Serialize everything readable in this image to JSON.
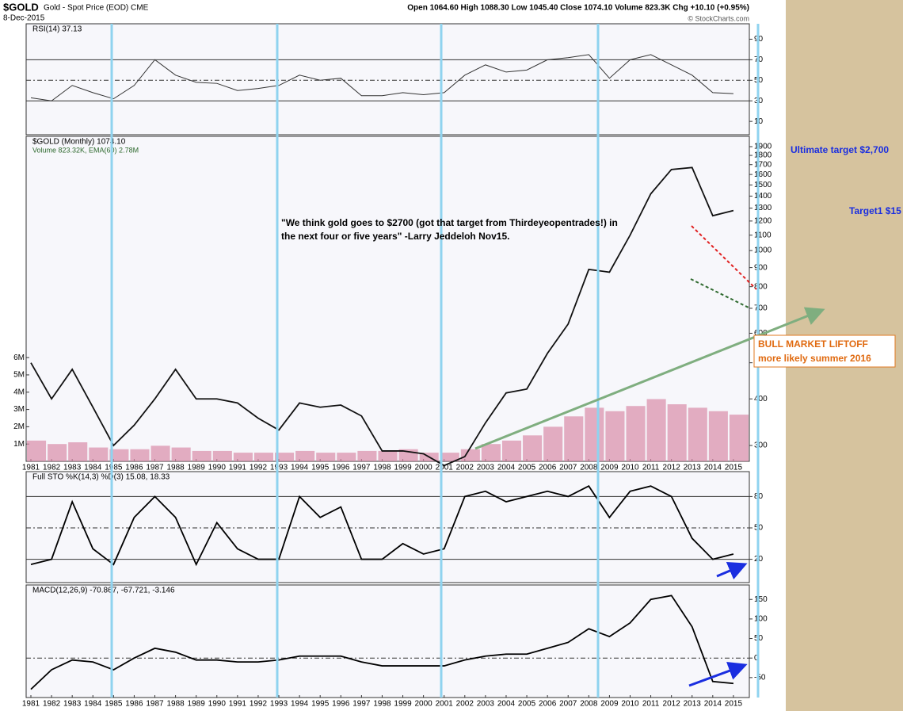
{
  "header": {
    "symbol": "$GOLD",
    "description": "Gold - Spot Price (EOD) CME",
    "date": "8-Dec-2015",
    "quote": "Open 1064.60 High 1088.30 Low 1045.40 Close 1074.10 Volume 823.3K Chg +10.10 (+0.95%)",
    "credit": "© StockCharts.com"
  },
  "annotations": {
    "quote": [
      "\"We think gold goes to $2700 (got that target from Thirdeyeopentrades!) in",
      "the next four or five years\" -Larry Jeddeloh Nov15."
    ],
    "ultimate": "Ultimate target $2,700",
    "target1": "Target1 $15",
    "box": [
      "BULL MARKET LIFTOFF",
      "more likely summer 2016"
    ]
  },
  "chart_data": [
    {
      "type": "line",
      "label": "RSI(14) 37.13",
      "color": "#333333",
      "x": [
        1981,
        1982,
        1983,
        1984,
        1985,
        1986,
        1987,
        1988,
        1989,
        1990,
        1991,
        1992,
        1993,
        1994,
        1995,
        1996,
        1997,
        1998,
        1999,
        2000,
        2001,
        2002,
        2003,
        2004,
        2005,
        2006,
        2007,
        2008,
        2009,
        2010,
        2011,
        2012,
        2013,
        2014,
        2015
      ],
      "values": [
        33,
        30,
        45,
        38,
        32,
        45,
        70,
        55,
        48,
        47,
        40,
        42,
        45,
        55,
        50,
        52,
        35,
        35,
        38,
        36,
        38,
        55,
        65,
        58,
        60,
        70,
        72,
        75,
        52,
        70,
        75,
        65,
        55,
        38,
        37
      ],
      "xlim": [
        1981,
        2016
      ],
      "ylim": [
        -3,
        105
      ],
      "yticks": [
        10,
        30,
        50,
        70,
        90
      ],
      "levels": [
        30,
        50,
        70
      ]
    },
    {
      "type": "line",
      "label": "$GOLD (Monthly) 1074.10",
      "sublabel": "Volume 823.32K, EMA(60) 2.78M",
      "color": "#111111",
      "log_scale": true,
      "x": [
        1981,
        1982,
        1983,
        1984,
        1985,
        1986,
        1987,
        1988,
        1989,
        1990,
        1991,
        1992,
        1993,
        1994,
        1995,
        1996,
        1997,
        1998,
        1999,
        2000,
        2001,
        2002,
        2003,
        2004,
        2005,
        2006,
        2007,
        2008,
        2009,
        2010,
        2011,
        2012,
        2013,
        2014,
        2015
      ],
      "values": [
        500,
        400,
        480,
        380,
        300,
        340,
        400,
        480,
        400,
        400,
        390,
        355,
        330,
        390,
        380,
        385,
        360,
        290,
        290,
        285,
        265,
        280,
        345,
        415,
        425,
        530,
        635,
        890,
        875,
        1100,
        1420,
        1650,
        1670,
        1240,
        1280
      ],
      "volume": [
        1200000,
        1000000,
        1100000,
        800000,
        700000,
        700000,
        900000,
        800000,
        600000,
        600000,
        500000,
        500000,
        500000,
        600000,
        500000,
        500000,
        600000,
        600000,
        700000,
        500000,
        500000,
        700000,
        1000000,
        1200000,
        1500000,
        2000000,
        2600000,
        3100000,
        2900000,
        3200000,
        3600000,
        3300000,
        3100000,
        2900000,
        2700000
      ],
      "volume_color": "#d98ca8",
      "xlim": [
        1981,
        2016
      ],
      "xticks": [
        1981,
        1982,
        1983,
        1984,
        1985,
        1986,
        1987,
        1988,
        1989,
        1990,
        1991,
        1992,
        1993,
        1994,
        1995,
        1996,
        1997,
        1998,
        1999,
        2000,
        2001,
        2002,
        2003,
        2004,
        2005,
        2006,
        2007,
        2008,
        2009,
        2010,
        2011,
        2012,
        2013,
        2014,
        2015
      ],
      "ylim": [
        272,
        2025
      ],
      "yticks": [
        300,
        400,
        500,
        600,
        700,
        800,
        900,
        1000,
        1100,
        1200,
        1300,
        1400,
        1500,
        1600,
        1700,
        1800,
        1900
      ],
      "y2lim": [
        0,
        18800000
      ],
      "y2ticks": [
        {
          "value": 1000000,
          "label": "1M"
        },
        {
          "value": 2000000,
          "label": "2M"
        },
        {
          "value": 3000000,
          "label": "3M"
        },
        {
          "value": 4000000,
          "label": "4M"
        },
        {
          "value": 5000000,
          "label": "5M"
        },
        {
          "value": 6000000,
          "label": "6M"
        }
      ]
    },
    {
      "type": "line",
      "label": "Full STO %K(14,3) %D(3) 15.08, 18.33",
      "color": "#000000",
      "x": [
        1981,
        1982,
        1983,
        1984,
        1985,
        1986,
        1987,
        1988,
        1989,
        1990,
        1991,
        1992,
        1993,
        1994,
        1995,
        1996,
        1997,
        1998,
        1999,
        2000,
        2001,
        2002,
        2003,
        2004,
        2005,
        2006,
        2007,
        2008,
        2009,
        2010,
        2011,
        2012,
        2013,
        2014,
        2015
      ],
      "values": [
        15,
        20,
        75,
        30,
        15,
        60,
        80,
        60,
        15,
        55,
        30,
        20,
        20,
        80,
        60,
        70,
        20,
        20,
        35,
        25,
        30,
        80,
        85,
        75,
        80,
        85,
        80,
        90,
        60,
        85,
        90,
        80,
        40,
        20,
        25
      ],
      "xlim": [
        1981,
        2016
      ],
      "ylim": [
        -2.3,
        103.8
      ],
      "yticks": [
        20,
        50,
        80
      ],
      "levels": [
        20,
        50,
        80
      ]
    },
    {
      "type": "line",
      "label": "MACD(12,26,9) -70.867, -67.721, -3.146",
      "color": "#000000",
      "x": [
        1981,
        1982,
        1983,
        1984,
        1985,
        1986,
        1987,
        1988,
        1989,
        1990,
        1991,
        1992,
        1993,
        1994,
        1995,
        1996,
        1997,
        1998,
        1999,
        2000,
        2001,
        2002,
        2003,
        2004,
        2005,
        2006,
        2007,
        2008,
        2009,
        2010,
        2011,
        2012,
        2013,
        2014,
        2015
      ],
      "values": [
        -80,
        -30,
        -5,
        -10,
        -30,
        0,
        25,
        15,
        -5,
        -5,
        -10,
        -10,
        -5,
        5,
        5,
        5,
        -10,
        -20,
        -20,
        -20,
        -20,
        -5,
        5,
        10,
        10,
        25,
        40,
        75,
        55,
        90,
        150,
        160,
        80,
        -60,
        -65
      ],
      "xlim": [
        1981,
        2016
      ],
      "xticks": [
        1981,
        1982,
        1983,
        1984,
        1985,
        1986,
        1987,
        1988,
        1989,
        1990,
        1991,
        1992,
        1993,
        1994,
        1995,
        1996,
        1997,
        1998,
        1999,
        2000,
        2001,
        2002,
        2003,
        2004,
        2005,
        2006,
        2007,
        2008,
        2009,
        2010,
        2011,
        2012,
        2013,
        2014,
        2015
      ],
      "ylim": [
        -101,
        187
      ],
      "yticks": [
        -50,
        0,
        50,
        100,
        150
      ],
      "levels": [
        0
      ]
    }
  ]
}
